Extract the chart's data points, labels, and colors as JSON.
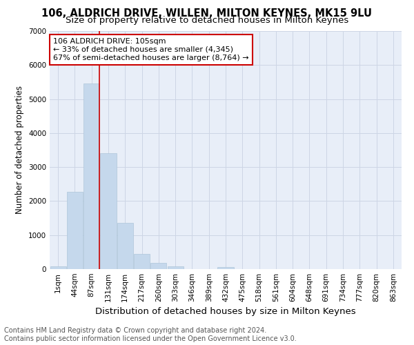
{
  "title": "106, ALDRICH DRIVE, WILLEN, MILTON KEYNES, MK15 9LU",
  "subtitle": "Size of property relative to detached houses in Milton Keynes",
  "xlabel": "Distribution of detached houses by size in Milton Keynes",
  "ylabel": "Number of detached properties",
  "footer_line1": "Contains HM Land Registry data © Crown copyright and database right 2024.",
  "footer_line2": "Contains public sector information licensed under the Open Government Licence v3.0.",
  "bar_labels": [
    "1sqm",
    "44sqm",
    "87sqm",
    "131sqm",
    "174sqm",
    "217sqm",
    "260sqm",
    "303sqm",
    "346sqm",
    "389sqm",
    "432sqm",
    "475sqm",
    "518sqm",
    "561sqm",
    "604sqm",
    "648sqm",
    "691sqm",
    "734sqm",
    "777sqm",
    "820sqm",
    "863sqm"
  ],
  "bar_values": [
    75,
    2270,
    5450,
    3400,
    1350,
    450,
    175,
    90,
    0,
    0,
    60,
    0,
    0,
    0,
    0,
    0,
    0,
    0,
    0,
    0,
    0
  ],
  "bar_color": "#c5d8ec",
  "bar_edge_color": "#aec6da",
  "bg_color": "#e8eef8",
  "grid_color": "#cdd5e5",
  "annotation_text": "106 ALDRICH DRIVE: 105sqm\n← 33% of detached houses are smaller (4,345)\n67% of semi-detached houses are larger (8,764) →",
  "annotation_box_color": "white",
  "annotation_box_edge_color": "#cc0000",
  "vline_x": 2.48,
  "vline_color": "#cc0000",
  "ylim": [
    0,
    7000
  ],
  "yticks": [
    0,
    1000,
    2000,
    3000,
    4000,
    5000,
    6000,
    7000
  ],
  "title_fontsize": 10.5,
  "subtitle_fontsize": 9.5,
  "xlabel_fontsize": 9.5,
  "ylabel_fontsize": 8.5,
  "footer_fontsize": 7,
  "annotation_fontsize": 8,
  "tick_fontsize": 7.5
}
